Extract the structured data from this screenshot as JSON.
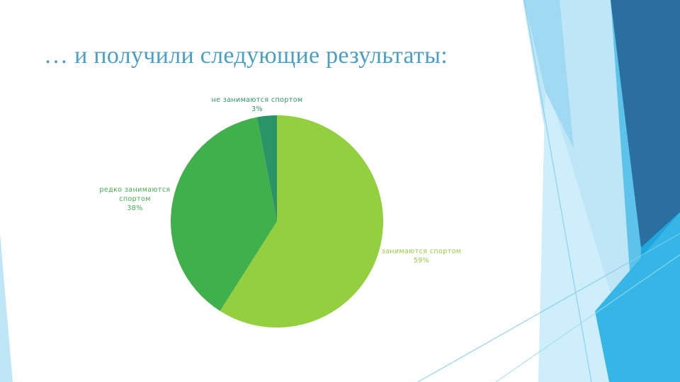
{
  "slide": {
    "title": "… и получили следующие результаты:"
  },
  "colors": {
    "title": "#4a9fc4",
    "deco_light": "#bfe6f6",
    "deco_mid": "#5ec3ea",
    "deco_dark": "#2a6fa0",
    "deco_bright": "#1fa8e0"
  },
  "chart_data": {
    "type": "pie",
    "title": "",
    "legend": "none",
    "slices": [
      {
        "name": "занимаются спортом",
        "value": 59,
        "label": "59%",
        "color": "#93cf3f"
      },
      {
        "name": "редко занимаются спортом",
        "value": 38,
        "label": "38%",
        "color": "#40b04c"
      },
      {
        "name": "не занимаются спортом",
        "value": 3,
        "label": "3%",
        "color": "#2b9467"
      }
    ],
    "data_labels": [
      {
        "lines": [
          "занимаются спортом"
        ],
        "value": "59%"
      },
      {
        "lines": [
          "редко занимаются",
          "спортом"
        ],
        "value": "38%"
      },
      {
        "lines": [
          "не занимаются спортом"
        ],
        "value": "3%"
      }
    ]
  }
}
